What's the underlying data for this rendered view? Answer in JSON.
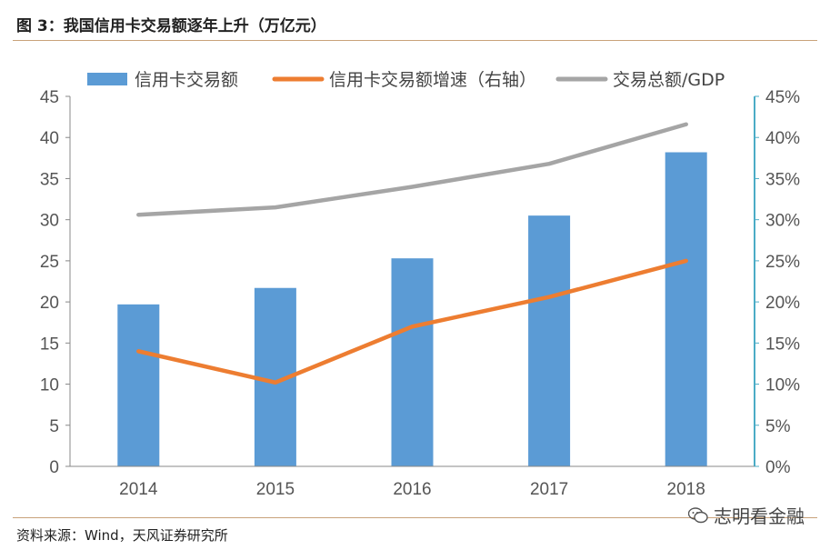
{
  "figure": {
    "title": "图 3：我国信用卡交易额逐年上升（万亿元）",
    "source": "资料来源：Wind，天风证券研究所",
    "watermark": "志明看金融"
  },
  "colors": {
    "bar": "#5b9bd5",
    "growth_line": "#ed7d31",
    "ratio_line": "#a5a5a5",
    "right_axis": "#4bacc6",
    "rule": "#c9a27a"
  },
  "chart_data": {
    "type": "bar",
    "categories": [
      "2014",
      "2015",
      "2016",
      "2017",
      "2018"
    ],
    "series": [
      {
        "name": "信用卡交易额",
        "type": "bar",
        "axis": "left",
        "values": [
          19.7,
          21.7,
          25.3,
          30.5,
          38.2
        ]
      },
      {
        "name": "信用卡交易额增速（右轴）",
        "type": "line",
        "axis": "right",
        "values": [
          14.0,
          10.2,
          17.0,
          20.6,
          25.0
        ]
      },
      {
        "name": "交易总额/GDP",
        "type": "line",
        "axis": "right",
        "values": [
          30.6,
          31.5,
          34.0,
          36.8,
          41.6
        ]
      }
    ],
    "y_left": {
      "min": 0,
      "max": 45,
      "step": 5,
      "ticks": [
        "0",
        "5",
        "10",
        "15",
        "20",
        "25",
        "30",
        "35",
        "40",
        "45"
      ]
    },
    "y_right": {
      "min": 0,
      "max": 45,
      "step": 5,
      "ticks": [
        "0%",
        "5%",
        "10%",
        "15%",
        "20%",
        "25%",
        "30%",
        "35%",
        "40%",
        "45%"
      ]
    },
    "legend": "top",
    "grid": false
  }
}
